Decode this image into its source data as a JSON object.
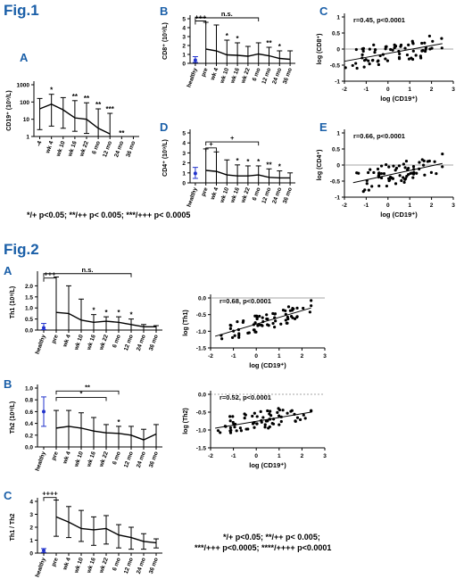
{
  "figure1": {
    "title": "Fig.1",
    "footnote": "*/+ p<0.05; **/++ p< 0.005; ***/+++ p< 0.0005"
  },
  "figure2": {
    "title": "Fig.2",
    "footnote_line1": "*/+ p<0.05; **/++ p< 0.005;",
    "footnote_line2": "***/+++ p<0.0005; ****/++++ p<0.0001"
  },
  "chart_data": [
    {
      "id": "fig1A",
      "panel_label": "A",
      "type": "line",
      "scale": "log",
      "ylabel": "CD19⁺ (10⁹/L)",
      "xlabel": "",
      "ylim": [
        1,
        1000
      ],
      "yticks": [
        1,
        10,
        100,
        1000
      ],
      "ytick_labels": [
        "1",
        "10",
        "100",
        "1000"
      ],
      "categories": [
        "-4",
        "wk 4",
        "wk 10",
        "wk 16",
        "wk 22",
        "6 mo",
        "12 mo",
        "24 mo",
        "36 mo"
      ],
      "values": [
        40,
        75,
        35,
        12,
        10,
        3,
        1.4,
        null,
        null
      ],
      "err_high": [
        160,
        280,
        180,
        120,
        90,
        40,
        22,
        null,
        null
      ],
      "err_low": [
        2.5,
        4,
        3,
        2,
        1.5,
        1,
        1,
        null,
        null
      ],
      "stars": [
        "",
        "*",
        "",
        "**",
        "**",
        "**",
        "***",
        "**",
        ""
      ],
      "brackets": []
    },
    {
      "id": "fig1B",
      "panel_label": "B",
      "type": "line",
      "ylabel": "CD8⁺ (10⁹/L)",
      "xlabel": "",
      "ylim": [
        0,
        5
      ],
      "yticks": [
        0,
        1,
        2,
        3,
        4,
        5
      ],
      "ytick_labels": [
        "0",
        "1",
        "2",
        "3",
        "4",
        "5"
      ],
      "categories": [
        "healthy",
        "pre",
        "wk 4",
        "wk 10",
        "wk 16",
        "wk 22",
        "6 mo",
        "12 mo",
        "24 mo",
        "36 mo"
      ],
      "values": [
        0.35,
        1.6,
        1.4,
        0.95,
        0.9,
        0.8,
        1.05,
        0.85,
        0.55,
        0.45
      ],
      "err_high": [
        0.75,
        4.6,
        4.3,
        2.6,
        2.3,
        1.9,
        2.3,
        1.8,
        1.4,
        1.4
      ],
      "err_low": [
        0.1,
        0,
        0,
        0,
        0,
        0,
        0,
        0,
        0,
        0
      ],
      "stars": [
        "",
        "",
        "",
        "*",
        "*",
        "",
        "",
        "**",
        "*",
        ""
      ],
      "brackets": [
        {
          "from": "healthy",
          "to": "pre",
          "label": "+++",
          "y": 4.75
        },
        {
          "from": "healthy",
          "to": "6 mo",
          "label": "n.s.",
          "y": 5.1
        }
      ]
    },
    {
      "id": "fig1C",
      "panel_label": "C",
      "type": "scatter",
      "ylabel": "log (CD8⁺)",
      "xlabel": "log (CD19⁺)",
      "annotation": "r=0.45, p<0.0001",
      "xlim": [
        -2,
        3
      ],
      "ylim": [
        -1,
        1
      ],
      "xticks": [
        -2,
        -1,
        0,
        1,
        2,
        3
      ],
      "yticks": [
        -1,
        -0.5,
        0,
        0.5,
        1
      ],
      "ytick_labels": [
        "-1",
        "-0.5",
        "0",
        "0.5",
        "1"
      ],
      "fit": {
        "x": [
          -2,
          2.5
        ],
        "y": [
          -0.38,
          0.17
        ]
      }
    },
    {
      "id": "fig1D",
      "panel_label": "D",
      "type": "line",
      "ylabel": "CD4⁺ (10⁹/L)",
      "xlabel": "",
      "ylim": [
        0,
        5
      ],
      "yticks": [
        0,
        1,
        2,
        3,
        4,
        5
      ],
      "ytick_labels": [
        "0",
        "1",
        "2",
        "3",
        "4",
        "5"
      ],
      "categories": [
        "healthy",
        "pre",
        "wk 4",
        "wk 10",
        "wk 16",
        "wk 22",
        "6 mo",
        "12 mo",
        "24 mo",
        "36 mo"
      ],
      "values": [
        0.95,
        1.25,
        1.15,
        0.8,
        0.7,
        0.7,
        0.8,
        0.55,
        0.5,
        0.5
      ],
      "err_high": [
        1.55,
        3.4,
        3.1,
        2.3,
        1.8,
        1.7,
        1.7,
        1.4,
        1.2,
        1.0
      ],
      "err_low": [
        0.45,
        0,
        0,
        0,
        0,
        0,
        0,
        0,
        0,
        0
      ],
      "stars": [
        "",
        "",
        "",
        "",
        "*",
        "*",
        "*",
        "**",
        "*",
        ""
      ],
      "brackets": [
        {
          "from": "pre",
          "to": "wk 4",
          "label": "+",
          "y": 3.5
        },
        {
          "from": "pre",
          "to": "6 mo",
          "label": "+",
          "y": 4.1
        }
      ]
    },
    {
      "id": "fig1E",
      "panel_label": "E",
      "type": "scatter",
      "ylabel": "log (CD4⁺)",
      "xlabel": "log (CD19⁺)",
      "annotation": "r=0.66, p<0.0001",
      "xlim": [
        -2,
        3
      ],
      "ylim": [
        -1,
        1
      ],
      "xticks": [
        -2,
        -1,
        0,
        1,
        2,
        3
      ],
      "yticks": [
        -1,
        -0.5,
        0,
        0.5,
        1
      ],
      "ytick_labels": [
        "-1",
        "-0.5",
        "0",
        "0.5",
        "1"
      ],
      "fit": {
        "x": [
          -1.6,
          2.5
        ],
        "y": [
          -0.55,
          0.05
        ]
      }
    },
    {
      "id": "fig2A",
      "panel_label": "A",
      "type": "line",
      "ylabel": "Th1 (10⁹/L)",
      "xlabel": "",
      "ylim": [
        0,
        2.5
      ],
      "yticks": [
        0,
        0.5,
        1,
        1.5,
        2
      ],
      "ytick_labels": [
        "0.0",
        "0.5",
        "1.0",
        "1.5",
        "2.0"
      ],
      "categories": [
        "healthy",
        "pre",
        "wk 4",
        "wk 10",
        "wk 16",
        "wk 22",
        "6 mo",
        "12 mo",
        "24 mo",
        "36 mo"
      ],
      "values": [
        0.1,
        0.8,
        0.75,
        0.45,
        0.35,
        0.4,
        0.35,
        0.25,
        0.15,
        0.15
      ],
      "err_high": [
        0.3,
        2.4,
        2.0,
        1.4,
        0.7,
        0.6,
        0.6,
        0.5,
        0.25,
        0.2
      ],
      "err_low": [
        0.02,
        0,
        0,
        0,
        0,
        0,
        0,
        0,
        0,
        0
      ],
      "stars": [
        "",
        "",
        "",
        "",
        "*",
        "*",
        "*",
        "*",
        "",
        ""
      ],
      "brackets": [
        {
          "from": "healthy",
          "to": "pre",
          "label": "+++",
          "y": 2.35
        },
        {
          "from": "healthy",
          "to": "12 mo",
          "label": "n.s.",
          "y": 2.55
        }
      ]
    },
    {
      "id": "fig2A_corr",
      "panel_label": "",
      "type": "scatter",
      "ylabel": "log (Th1)",
      "xlabel": "log (CD19⁺)",
      "annotation": "r=0.68, p<0.0001",
      "xlim": [
        -2,
        3
      ],
      "ylim": [
        -1.5,
        0
      ],
      "xticks": [
        -2,
        -1,
        0,
        1,
        2,
        3
      ],
      "yticks": [
        -1.5,
        -1,
        -0.5,
        0
      ],
      "ytick_labels": [
        "-1.5",
        "-1.0",
        "-0.5",
        "0.0"
      ],
      "fit": {
        "x": [
          -1.8,
          2.4
        ],
        "y": [
          -1.15,
          -0.3
        ]
      }
    },
    {
      "id": "fig2B",
      "panel_label": "B",
      "type": "line",
      "ylabel": "Th2 (10⁹/L)",
      "xlabel": "",
      "ylim": [
        0,
        1.0
      ],
      "yticks": [
        0,
        0.2,
        0.4,
        0.6,
        0.8,
        1.0
      ],
      "ytick_labels": [
        "0.0",
        "0.2",
        "0.4",
        "0.6",
        "0.8",
        "1.0"
      ],
      "categories": [
        "healthy",
        "pre",
        "wk 4",
        "wk 10",
        "wk 16",
        "wk 22",
        "6 mo",
        "12 mo",
        "24 mo",
        "36 mo"
      ],
      "values": [
        0.6,
        0.32,
        0.35,
        0.32,
        0.27,
        0.24,
        0.23,
        0.2,
        0.12,
        0.22
      ],
      "err_high": [
        0.85,
        0.62,
        0.62,
        0.58,
        0.5,
        0.38,
        0.35,
        0.35,
        0.3,
        0.38
      ],
      "err_low": [
        0.35,
        0,
        0,
        0,
        0,
        0,
        0,
        0,
        0,
        0
      ],
      "stars": [
        "",
        "",
        "",
        "",
        "",
        "",
        "*",
        "",
        "",
        ""
      ],
      "brackets": [
        {
          "from": "pre",
          "to": "wk 22",
          "label": "*",
          "y": 0.84
        },
        {
          "from": "pre",
          "to": "6 mo",
          "label": "**",
          "y": 0.95
        }
      ]
    },
    {
      "id": "fig2B_corr",
      "panel_label": "",
      "type": "scatter",
      "ylabel": "log (Th2)",
      "xlabel": "log (CD19⁺)",
      "annotation": "r=0.52, p<0.0001",
      "xlim": [
        -2,
        3
      ],
      "ylim": [
        -1.5,
        0
      ],
      "xticks": [
        -2,
        -1,
        0,
        1,
        2,
        3
      ],
      "yticks": [
        -1.5,
        -1,
        -0.5,
        0
      ],
      "ytick_labels": [
        "-1.5",
        "-1.0",
        "-0.5",
        "0.0"
      ],
      "fit": {
        "x": [
          -1.8,
          2.4
        ],
        "y": [
          -0.95,
          -0.5
        ]
      }
    },
    {
      "id": "fig2C",
      "panel_label": "C",
      "type": "line",
      "ylabel": "Th1 / Th2",
      "xlabel": "",
      "ylim": [
        0,
        4
      ],
      "yticks": [
        0,
        1,
        2,
        3,
        4
      ],
      "ytick_labels": [
        "0",
        "1",
        "2",
        "3",
        "4"
      ],
      "categories": [
        "healthy",
        "pre",
        "wk 4",
        "wk 10",
        "wk 16",
        "wk 22",
        "6 mo",
        "12 mo",
        "24 mo",
        "36 mo"
      ],
      "values": [
        0.2,
        2.8,
        2.4,
        1.9,
        1.8,
        1.9,
        1.4,
        1.2,
        0.9,
        0.8
      ],
      "err_high": [
        0.35,
        4.1,
        3.6,
        3.3,
        2.8,
        2.9,
        2.2,
        2.0,
        1.5,
        1.1
      ],
      "err_low": [
        0.05,
        1.3,
        1.2,
        0.9,
        0.6,
        0.7,
        0.4,
        0.3,
        0.3,
        0.4
      ],
      "stars": [
        "",
        "",
        "",
        "",
        "",
        "",
        "",
        "",
        "",
        ""
      ],
      "brackets": [
        {
          "from": "healthy",
          "to": "pre",
          "label": "++++",
          "y": 4.3
        }
      ]
    }
  ]
}
